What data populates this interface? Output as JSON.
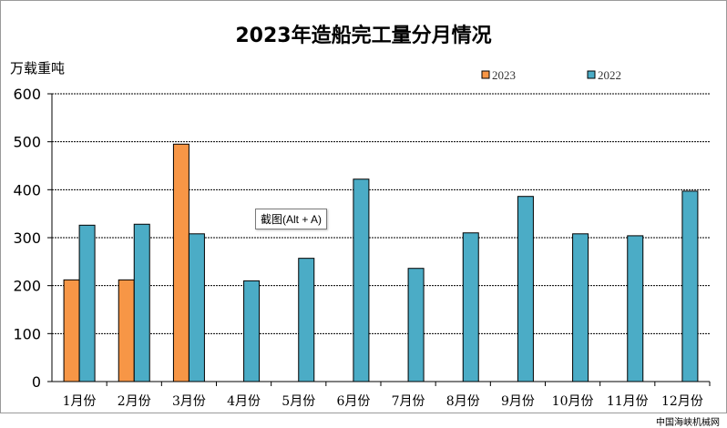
{
  "chart_data": {
    "type": "bar",
    "title": "2023年造船完工量分月情况",
    "ylabel": "万载重吨",
    "xlabel": "",
    "ylim": [
      0,
      600
    ],
    "yticks": [
      0,
      100,
      200,
      300,
      400,
      500,
      600
    ],
    "grid": true,
    "legend_position": "top",
    "categories": [
      "1月份",
      "2月份",
      "3月份",
      "4月份",
      "5月份",
      "6月份",
      "7月份",
      "8月份",
      "9月份",
      "10月份",
      "11月份",
      "12月份"
    ],
    "series": [
      {
        "name": "2023",
        "color": "#f79646",
        "values": [
          212,
          212,
          495,
          null,
          null,
          null,
          null,
          null,
          null,
          null,
          null,
          null
        ]
      },
      {
        "name": "2022",
        "color": "#4bacc6",
        "values": [
          326,
          328,
          308,
          210,
          257,
          422,
          236,
          310,
          386,
          308,
          304,
          397
        ]
      }
    ]
  },
  "tooltip": "截图(Alt + A)",
  "watermark": "中国海峡机械网"
}
